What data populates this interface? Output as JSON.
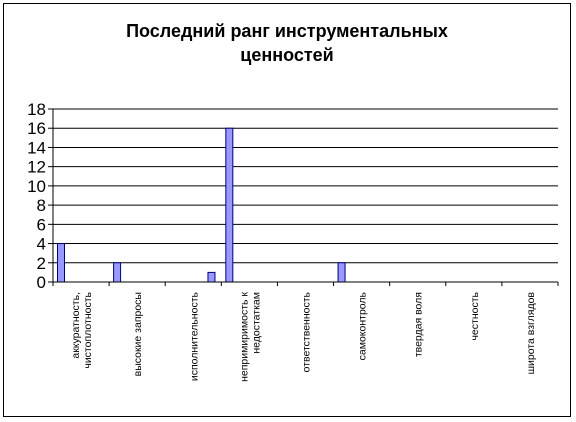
{
  "chart_data": {
    "type": "bar",
    "title": "Последний ранг инструментальных ценностей",
    "title_lines": [
      "Последний ранг инструментальных",
      "ценностей"
    ],
    "xlabel": "",
    "ylabel": "",
    "ylim": [
      0,
      18
    ],
    "ytick_step": 2,
    "grid": true,
    "legend": "none",
    "categories": [
      [
        "аккуратность,",
        "чистоплотность"
      ],
      [
        "высокие запросы"
      ],
      [
        "исполнительность"
      ],
      [
        "непримиримость к",
        "недостаткам"
      ],
      [
        "ответственность"
      ],
      [
        "самоконтроль"
      ],
      [
        "твердая воля"
      ],
      [
        "честность"
      ],
      [
        "широта взглядов"
      ]
    ],
    "series": [
      {
        "values": [
          4,
          2,
          0,
          16,
          0,
          2,
          0,
          0,
          0
        ]
      },
      {
        "values": [
          0,
          0,
          1,
          0,
          0,
          0,
          0,
          0,
          0
        ]
      }
    ],
    "colors": {
      "bar_fill": "#9999ff",
      "bar_stroke": "#000080",
      "grid": "#000000",
      "axis": "#000000"
    }
  }
}
